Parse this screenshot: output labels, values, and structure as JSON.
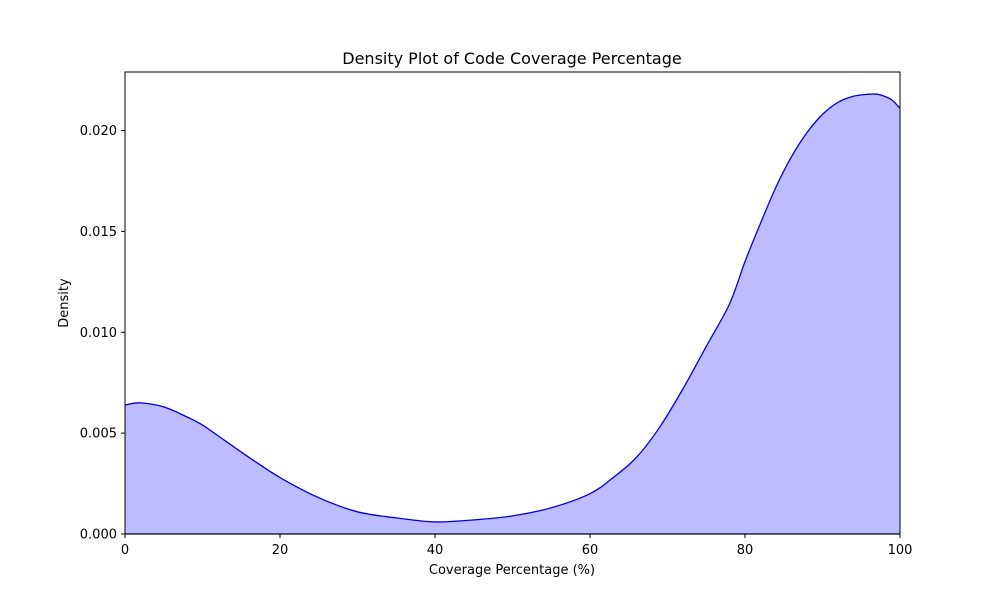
{
  "chart_data": {
    "type": "area",
    "title": "Density Plot of Code Coverage Percentage",
    "xlabel": "Coverage Percentage (%)",
    "ylabel": "Density",
    "xlim": [
      0,
      100
    ],
    "ylim": [
      0,
      0.0229
    ],
    "xticks": [
      {
        "value": 0,
        "label": "0"
      },
      {
        "value": 20,
        "label": "20"
      },
      {
        "value": 40,
        "label": "40"
      },
      {
        "value": 60,
        "label": "60"
      },
      {
        "value": 80,
        "label": "80"
      },
      {
        "value": 100,
        "label": "100"
      }
    ],
    "yticks": [
      {
        "value": 0,
        "label": "0.000"
      },
      {
        "value": 0.005,
        "label": "0.005"
      },
      {
        "value": 0.01,
        "label": "0.010"
      },
      {
        "value": 0.015,
        "label": "0.015"
      },
      {
        "value": 0.02,
        "label": "0.020"
      }
    ],
    "grid": false,
    "series": [
      {
        "line_color": "#0000dd",
        "fill_color": "#bcbcff",
        "x": [
          0,
          2,
          5,
          8,
          10,
          13,
          16,
          20,
          25,
          30,
          35,
          40,
          45,
          50,
          55,
          60,
          63,
          66,
          69,
          72,
          75,
          78,
          80,
          82,
          84,
          86,
          88,
          90,
          92,
          94,
          96,
          97,
          98,
          99,
          100
        ],
        "y": [
          0.0064,
          0.0065,
          0.0063,
          0.0058,
          0.0054,
          0.0046,
          0.0038,
          0.0028,
          0.0018,
          0.0011,
          0.0008,
          0.0006,
          0.0007,
          0.0009,
          0.0013,
          0.002,
          0.0028,
          0.0038,
          0.0053,
          0.0072,
          0.0093,
          0.0114,
          0.0135,
          0.0154,
          0.0172,
          0.0187,
          0.0199,
          0.0208,
          0.0214,
          0.0217,
          0.0218,
          0.0218,
          0.0217,
          0.0215,
          0.0211
        ]
      }
    ]
  }
}
